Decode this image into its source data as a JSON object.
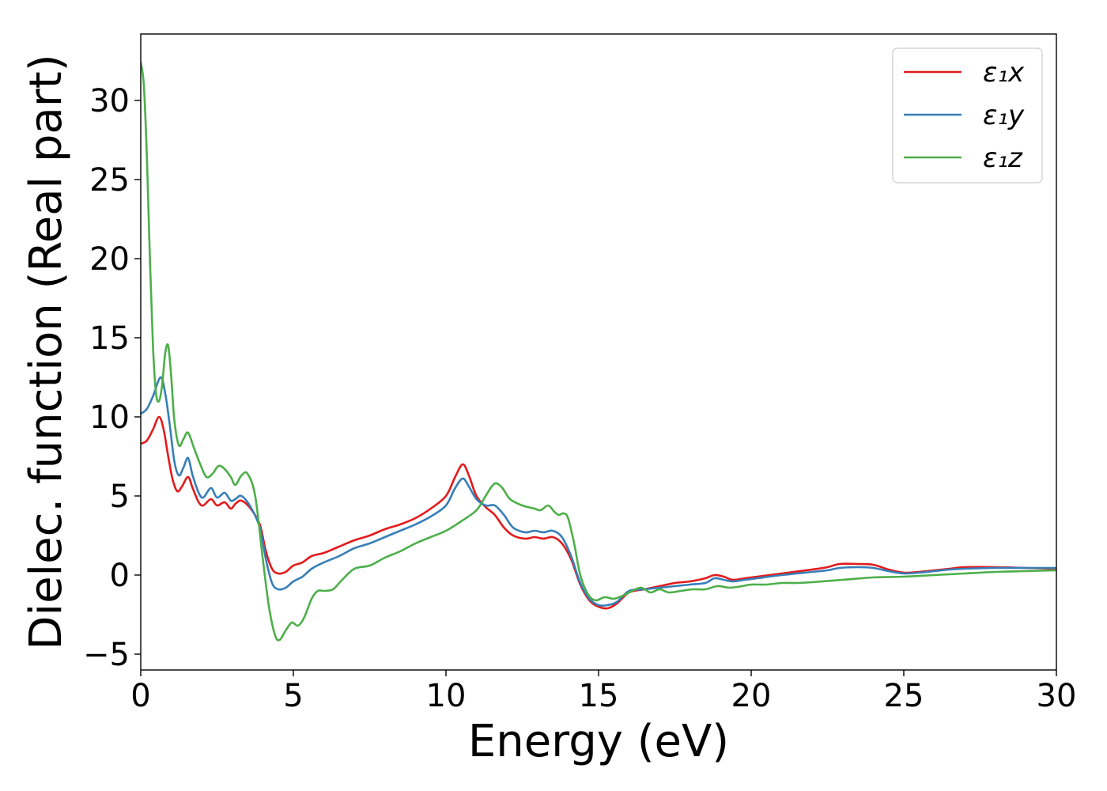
{
  "chart_data": {
    "type": "line",
    "title": "",
    "xlabel": "Energy (eV)",
    "ylabel": "Dielec. function (Real part)",
    "xlim": [
      0,
      30
    ],
    "ylim": [
      -6,
      34.2
    ],
    "xticks": [
      0,
      5,
      10,
      15,
      20,
      25,
      30
    ],
    "xtick_labels": [
      "0",
      "5",
      "10",
      "15",
      "20",
      "25",
      "30"
    ],
    "yticks": [
      -5,
      0,
      5,
      10,
      15,
      20,
      25,
      30
    ],
    "ytick_labels": [
      "−5",
      "0",
      "5",
      "10",
      "15",
      "20",
      "25",
      "30"
    ],
    "grid": false,
    "legend": "top-right",
    "series": [
      {
        "name": "ε₁x",
        "color": "#e41a1c",
        "points": [
          [
            0,
            8.3
          ],
          [
            0.2,
            8.5
          ],
          [
            0.4,
            9.2
          ],
          [
            0.6,
            10.0
          ],
          [
            0.75,
            9.2
          ],
          [
            0.9,
            7.5
          ],
          [
            1.05,
            6.0
          ],
          [
            1.2,
            5.3
          ],
          [
            1.35,
            5.6
          ],
          [
            1.55,
            6.2
          ],
          [
            1.7,
            5.5
          ],
          [
            1.9,
            4.6
          ],
          [
            2.05,
            4.4
          ],
          [
            2.3,
            4.8
          ],
          [
            2.5,
            4.4
          ],
          [
            2.75,
            4.6
          ],
          [
            2.95,
            4.2
          ],
          [
            3.1,
            4.5
          ],
          [
            3.3,
            4.7
          ],
          [
            3.6,
            4.2
          ],
          [
            3.9,
            3.2
          ],
          [
            4.1,
            1.5
          ],
          [
            4.3,
            0.4
          ],
          [
            4.5,
            0.1
          ],
          [
            4.75,
            0.2
          ],
          [
            5.0,
            0.6
          ],
          [
            5.3,
            0.8
          ],
          [
            5.6,
            1.2
          ],
          [
            6.0,
            1.4
          ],
          [
            6.5,
            1.8
          ],
          [
            7.0,
            2.2
          ],
          [
            7.5,
            2.5
          ],
          [
            8.0,
            2.9
          ],
          [
            8.5,
            3.2
          ],
          [
            9.0,
            3.6
          ],
          [
            9.5,
            4.2
          ],
          [
            10.0,
            5.0
          ],
          [
            10.3,
            6.2
          ],
          [
            10.55,
            7.0
          ],
          [
            10.75,
            6.3
          ],
          [
            11.0,
            5.0
          ],
          [
            11.3,
            4.3
          ],
          [
            11.6,
            3.8
          ],
          [
            11.9,
            3.0
          ],
          [
            12.2,
            2.5
          ],
          [
            12.6,
            2.3
          ],
          [
            12.9,
            2.4
          ],
          [
            13.2,
            2.3
          ],
          [
            13.5,
            2.4
          ],
          [
            13.8,
            2.0
          ],
          [
            14.1,
            1.0
          ],
          [
            14.4,
            -0.6
          ],
          [
            14.7,
            -1.6
          ],
          [
            15.0,
            -2.0
          ],
          [
            15.3,
            -2.1
          ],
          [
            15.6,
            -1.8
          ],
          [
            16.0,
            -1.1
          ],
          [
            16.5,
            -0.9
          ],
          [
            17.0,
            -0.7
          ],
          [
            17.5,
            -0.5
          ],
          [
            18.0,
            -0.4
          ],
          [
            18.5,
            -0.2
          ],
          [
            18.8,
            0.0
          ],
          [
            19.1,
            -0.1
          ],
          [
            19.4,
            -0.3
          ],
          [
            19.8,
            -0.2
          ],
          [
            20.2,
            -0.1
          ],
          [
            21.0,
            0.1
          ],
          [
            22.0,
            0.35
          ],
          [
            22.5,
            0.5
          ],
          [
            22.9,
            0.7
          ],
          [
            23.5,
            0.7
          ],
          [
            24.0,
            0.65
          ],
          [
            24.5,
            0.35
          ],
          [
            25.0,
            0.15
          ],
          [
            25.5,
            0.2
          ],
          [
            26.0,
            0.3
          ],
          [
            26.5,
            0.4
          ],
          [
            27.0,
            0.5
          ],
          [
            28.0,
            0.5
          ],
          [
            29.0,
            0.45
          ],
          [
            30.0,
            0.4
          ]
        ]
      },
      {
        "name": "ε₁y",
        "color": "#377eb8",
        "points": [
          [
            0,
            10.2
          ],
          [
            0.2,
            10.5
          ],
          [
            0.4,
            11.3
          ],
          [
            0.65,
            12.5
          ],
          [
            0.8,
            11.5
          ],
          [
            0.95,
            9.5
          ],
          [
            1.1,
            7.2
          ],
          [
            1.25,
            6.3
          ],
          [
            1.4,
            6.8
          ],
          [
            1.55,
            7.4
          ],
          [
            1.7,
            6.3
          ],
          [
            1.9,
            5.2
          ],
          [
            2.05,
            4.9
          ],
          [
            2.3,
            5.5
          ],
          [
            2.5,
            4.9
          ],
          [
            2.75,
            5.2
          ],
          [
            2.95,
            4.7
          ],
          [
            3.1,
            4.8
          ],
          [
            3.3,
            5.0
          ],
          [
            3.6,
            4.3
          ],
          [
            3.9,
            3.0
          ],
          [
            4.1,
            1.0
          ],
          [
            4.3,
            -0.5
          ],
          [
            4.5,
            -0.9
          ],
          [
            4.75,
            -0.8
          ],
          [
            5.0,
            -0.4
          ],
          [
            5.3,
            -0.1
          ],
          [
            5.6,
            0.4
          ],
          [
            6.0,
            0.8
          ],
          [
            6.5,
            1.2
          ],
          [
            7.0,
            1.7
          ],
          [
            7.5,
            2.0
          ],
          [
            8.0,
            2.4
          ],
          [
            8.5,
            2.8
          ],
          [
            9.0,
            3.2
          ],
          [
            9.5,
            3.7
          ],
          [
            10.0,
            4.4
          ],
          [
            10.3,
            5.5
          ],
          [
            10.55,
            6.1
          ],
          [
            10.75,
            5.6
          ],
          [
            11.0,
            4.8
          ],
          [
            11.3,
            4.4
          ],
          [
            11.6,
            4.4
          ],
          [
            11.9,
            3.8
          ],
          [
            12.2,
            3.0
          ],
          [
            12.6,
            2.7
          ],
          [
            12.9,
            2.8
          ],
          [
            13.2,
            2.7
          ],
          [
            13.5,
            2.8
          ],
          [
            13.8,
            2.4
          ],
          [
            14.1,
            1.2
          ],
          [
            14.4,
            -0.5
          ],
          [
            14.7,
            -1.5
          ],
          [
            15.0,
            -1.9
          ],
          [
            15.3,
            -1.9
          ],
          [
            15.6,
            -1.7
          ],
          [
            16.0,
            -1.0
          ],
          [
            16.5,
            -0.9
          ],
          [
            17.0,
            -0.8
          ],
          [
            17.5,
            -0.7
          ],
          [
            18.0,
            -0.6
          ],
          [
            18.5,
            -0.5
          ],
          [
            18.8,
            -0.2
          ],
          [
            19.1,
            -0.3
          ],
          [
            19.4,
            -0.4
          ],
          [
            19.8,
            -0.3
          ],
          [
            20.2,
            -0.2
          ],
          [
            21.0,
            0.0
          ],
          [
            22.0,
            0.2
          ],
          [
            22.5,
            0.3
          ],
          [
            22.9,
            0.45
          ],
          [
            23.5,
            0.5
          ],
          [
            24.0,
            0.45
          ],
          [
            24.5,
            0.25
          ],
          [
            25.0,
            0.1
          ],
          [
            25.5,
            0.15
          ],
          [
            26.0,
            0.25
          ],
          [
            26.5,
            0.35
          ],
          [
            27.0,
            0.4
          ],
          [
            28.0,
            0.45
          ],
          [
            29.0,
            0.45
          ],
          [
            30.0,
            0.45
          ]
        ]
      },
      {
        "name": "ε₁z",
        "color": "#4daf4a",
        "points": [
          [
            0,
            32.4
          ],
          [
            0.1,
            31.0
          ],
          [
            0.2,
            26.5
          ],
          [
            0.3,
            20.0
          ],
          [
            0.4,
            14.5
          ],
          [
            0.5,
            11.5
          ],
          [
            0.6,
            11.0
          ],
          [
            0.7,
            12.0
          ],
          [
            0.8,
            14.0
          ],
          [
            0.9,
            14.5
          ],
          [
            1.0,
            12.5
          ],
          [
            1.1,
            9.8
          ],
          [
            1.25,
            8.2
          ],
          [
            1.4,
            8.6
          ],
          [
            1.55,
            9.0
          ],
          [
            1.75,
            8.0
          ],
          [
            1.95,
            7.0
          ],
          [
            2.15,
            6.2
          ],
          [
            2.35,
            6.4
          ],
          [
            2.55,
            6.9
          ],
          [
            2.75,
            6.7
          ],
          [
            2.95,
            6.2
          ],
          [
            3.1,
            5.7
          ],
          [
            3.3,
            6.3
          ],
          [
            3.5,
            6.4
          ],
          [
            3.75,
            5.0
          ],
          [
            4.0,
            1.0
          ],
          [
            4.2,
            -2.0
          ],
          [
            4.4,
            -3.8
          ],
          [
            4.55,
            -4.1
          ],
          [
            4.75,
            -3.5
          ],
          [
            4.95,
            -3.0
          ],
          [
            5.15,
            -3.2
          ],
          [
            5.35,
            -2.7
          ],
          [
            5.6,
            -1.5
          ],
          [
            5.8,
            -1.0
          ],
          [
            6.0,
            -1.0
          ],
          [
            6.3,
            -0.9
          ],
          [
            6.6,
            -0.3
          ],
          [
            7.0,
            0.4
          ],
          [
            7.5,
            0.6
          ],
          [
            8.0,
            1.1
          ],
          [
            8.5,
            1.5
          ],
          [
            9.0,
            2.0
          ],
          [
            9.5,
            2.4
          ],
          [
            10.0,
            2.8
          ],
          [
            10.5,
            3.4
          ],
          [
            11.0,
            4.1
          ],
          [
            11.3,
            5.0
          ],
          [
            11.5,
            5.6
          ],
          [
            11.65,
            5.8
          ],
          [
            11.85,
            5.5
          ],
          [
            12.1,
            4.8
          ],
          [
            12.5,
            4.4
          ],
          [
            12.9,
            4.2
          ],
          [
            13.1,
            4.1
          ],
          [
            13.35,
            4.4
          ],
          [
            13.55,
            4.0
          ],
          [
            13.7,
            3.8
          ],
          [
            13.85,
            3.9
          ],
          [
            14.0,
            3.6
          ],
          [
            14.2,
            2.0
          ],
          [
            14.4,
            0.0
          ],
          [
            14.65,
            -1.2
          ],
          [
            14.9,
            -1.6
          ],
          [
            15.2,
            -1.4
          ],
          [
            15.5,
            -1.5
          ],
          [
            15.8,
            -1.3
          ],
          [
            16.1,
            -1.0
          ],
          [
            16.4,
            -0.8
          ],
          [
            16.7,
            -1.1
          ],
          [
            17.0,
            -0.9
          ],
          [
            17.3,
            -1.1
          ],
          [
            17.7,
            -1.0
          ],
          [
            18.1,
            -0.9
          ],
          [
            18.5,
            -0.9
          ],
          [
            18.9,
            -0.7
          ],
          [
            19.3,
            -0.8
          ],
          [
            19.7,
            -0.7
          ],
          [
            20.0,
            -0.6
          ],
          [
            20.5,
            -0.6
          ],
          [
            21.0,
            -0.5
          ],
          [
            21.5,
            -0.5
          ],
          [
            22.0,
            -0.45
          ],
          [
            23.0,
            -0.3
          ],
          [
            24.0,
            -0.15
          ],
          [
            25.0,
            -0.1
          ],
          [
            26.0,
            0.0
          ],
          [
            27.0,
            0.1
          ],
          [
            28.0,
            0.2
          ],
          [
            29.0,
            0.25
          ],
          [
            30.0,
            0.3
          ]
        ]
      }
    ]
  }
}
